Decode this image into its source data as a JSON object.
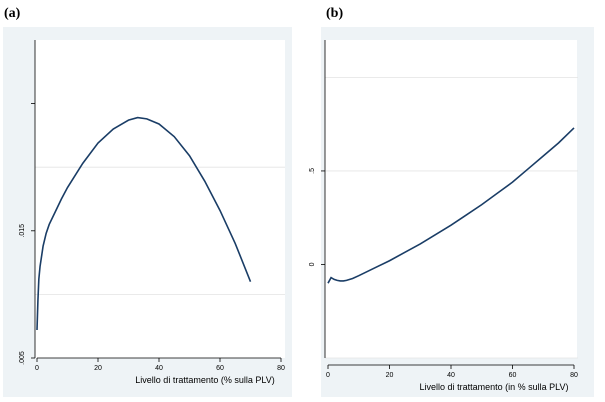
{
  "chart_data": [
    {
      "panel_label": "(a)",
      "type": "line",
      "xlabel": "Livello di trattamento (% sulla PLV)",
      "ylabel": "",
      "xlim": [
        0,
        80
      ],
      "ylim": [
        0.005,
        0.03
      ],
      "xticks": [
        0,
        20,
        40,
        60,
        80
      ],
      "xtick_labels": [
        "0",
        "20",
        "40",
        "60",
        "80"
      ],
      "yticks": [
        0.005,
        0.015,
        0.025
      ],
      "ytick_labels": [
        ".005",
        ".015",
        ""
      ],
      "ygrid": [
        0.01,
        0.02
      ],
      "series": [
        {
          "x": [
            0,
            0.3,
            0.6,
            1,
            1.5,
            2,
            3,
            4,
            6,
            8,
            10,
            15,
            20,
            25,
            30,
            33,
            36,
            40,
            45,
            50,
            55,
            60,
            65,
            70
          ],
          "y": [
            0.0072,
            0.0095,
            0.0112,
            0.0122,
            0.013,
            0.0138,
            0.0148,
            0.0155,
            0.0165,
            0.0175,
            0.0184,
            0.0203,
            0.0219,
            0.023,
            0.0237,
            0.0239,
            0.0238,
            0.0234,
            0.0224,
            0.0209,
            0.0189,
            0.0166,
            0.014,
            0.011
          ]
        }
      ]
    },
    {
      "panel_label": "(b)",
      "type": "line",
      "xlabel": "Livello di trattamento (in % sulla PLV)",
      "ylabel": "",
      "xlim": [
        0,
        80
      ],
      "ylim": [
        -0.5,
        1.2
      ],
      "xticks": [
        0,
        20,
        40,
        60,
        80
      ],
      "xtick_labels": [
        "0",
        "20",
        "40",
        "60",
        "80"
      ],
      "yticks": [
        0,
        0.5
      ],
      "ytick_labels": [
        "0",
        ".5"
      ],
      "ygrid": [
        -0.5,
        0.5,
        1.0
      ],
      "series": [
        {
          "x": [
            0,
            1,
            2,
            3,
            4,
            5,
            6,
            8,
            10,
            15,
            20,
            25,
            30,
            35,
            40,
            45,
            50,
            55,
            60,
            65,
            70,
            75,
            80
          ],
          "y": [
            -0.1,
            -0.07,
            -0.08,
            -0.085,
            -0.088,
            -0.088,
            -0.085,
            -0.075,
            -0.06,
            -0.02,
            0.02,
            0.065,
            0.11,
            0.16,
            0.21,
            0.265,
            0.32,
            0.38,
            0.44,
            0.51,
            0.58,
            0.65,
            0.73
          ]
        }
      ]
    }
  ]
}
